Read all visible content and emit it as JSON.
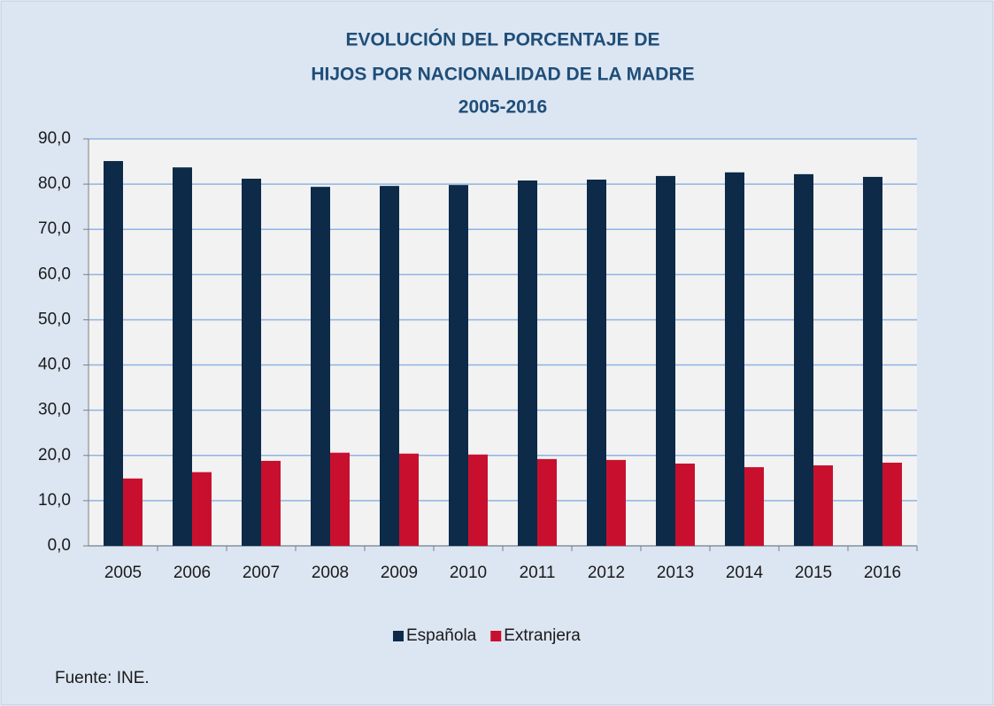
{
  "chart_data": {
    "type": "bar",
    "title": [
      "EVOLUCIÓN DEL PORCENTAJE DE",
      "HIJOS POR NACIONALIDAD DE LA MADRE",
      "2005-2016"
    ],
    "categories": [
      "2005",
      "2006",
      "2007",
      "2008",
      "2009",
      "2010",
      "2011",
      "2012",
      "2013",
      "2014",
      "2015",
      "2016"
    ],
    "series": [
      {
        "name": "Española",
        "color": "#0d2a48",
        "values": [
          85.1,
          83.7,
          81.2,
          79.4,
          79.6,
          79.8,
          80.8,
          81.0,
          81.8,
          82.6,
          82.2,
          81.6
        ]
      },
      {
        "name": "Extranjera",
        "color": "#c8102e",
        "values": [
          14.9,
          16.3,
          18.8,
          20.6,
          20.4,
          20.2,
          19.2,
          19.0,
          18.2,
          17.4,
          17.8,
          18.4
        ]
      }
    ],
    "ylim": [
      0,
      90
    ],
    "yticks": [
      {
        "value": 0,
        "label": "0,0"
      },
      {
        "value": 10,
        "label": "10,0"
      },
      {
        "value": 20,
        "label": "20,0"
      },
      {
        "value": 30,
        "label": "30,0"
      },
      {
        "value": 40,
        "label": "40,0"
      },
      {
        "value": 50,
        "label": "50,0"
      },
      {
        "value": 60,
        "label": "60,0"
      },
      {
        "value": 70,
        "label": "70,0"
      },
      {
        "value": 80,
        "label": "80,0"
      },
      {
        "value": 90,
        "label": "90,0"
      }
    ],
    "grid": true,
    "legend": "bottom",
    "source": "Fuente: INE."
  }
}
